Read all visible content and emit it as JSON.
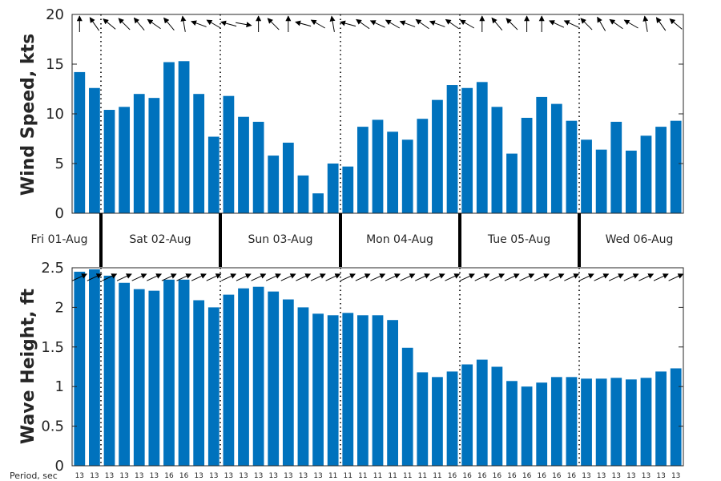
{
  "chart_data": [
    {
      "type": "bar",
      "ylabel": "Wind Speed, kts",
      "ylim": [
        0,
        20
      ],
      "yticks": [
        0,
        5,
        10,
        15,
        20
      ],
      "bar_color": "#0072BD",
      "values": [
        14.2,
        12.6,
        10.4,
        10.7,
        12.0,
        11.6,
        15.2,
        15.3,
        12.0,
        7.7,
        11.8,
        9.7,
        9.2,
        5.8,
        7.1,
        3.8,
        2.0,
        5.0,
        4.7,
        8.7,
        9.4,
        8.2,
        7.4,
        9.5,
        11.4,
        12.9,
        12.6,
        13.2,
        10.7,
        6.0,
        9.6,
        11.7,
        11.0,
        9.3,
        7.4,
        6.4,
        9.2,
        6.3,
        7.8,
        8.7,
        9.3
      ],
      "direction_arrows": true
    },
    {
      "type": "bar",
      "ylabel": "Wave Height, ft",
      "ylim": [
        0,
        2.5
      ],
      "yticks": [
        "0",
        "0.5",
        "1",
        "1.5",
        "2",
        "2.5"
      ],
      "bar_color": "#0072BD",
      "values": [
        2.45,
        2.48,
        2.4,
        2.31,
        2.23,
        2.21,
        2.35,
        2.35,
        2.09,
        2.0,
        2.16,
        2.24,
        2.26,
        2.2,
        2.1,
        2.0,
        1.92,
        1.9,
        1.93,
        1.9,
        1.9,
        1.84,
        1.49,
        1.18,
        1.12,
        1.19,
        1.28,
        1.34,
        1.25,
        1.07,
        1.0,
        1.05,
        1.12,
        1.12,
        1.1,
        1.1,
        1.11,
        1.09,
        1.11,
        1.19,
        1.23
      ],
      "direction_arrows": true
    }
  ],
  "days": [
    "Fri 01-Aug",
    "Sat 02-Aug",
    "Sun 03-Aug",
    "Mon 04-Aug",
    "Tue 05-Aug",
    "Wed 06-Aug"
  ],
  "period_label": "Period, sec",
  "periods": [
    "13",
    "13",
    "13",
    "13",
    "13",
    "13",
    "16",
    "16",
    "13",
    "13",
    "13",
    "13",
    "13",
    "13",
    "13",
    "13",
    "13",
    "11",
    "11",
    "11",
    "11",
    "11",
    "11",
    "11",
    "11",
    "16",
    "16",
    "16",
    "16",
    "16",
    "16",
    "16",
    "16",
    "16",
    "13",
    "13",
    "13",
    "13",
    "13",
    "13",
    "13"
  ]
}
